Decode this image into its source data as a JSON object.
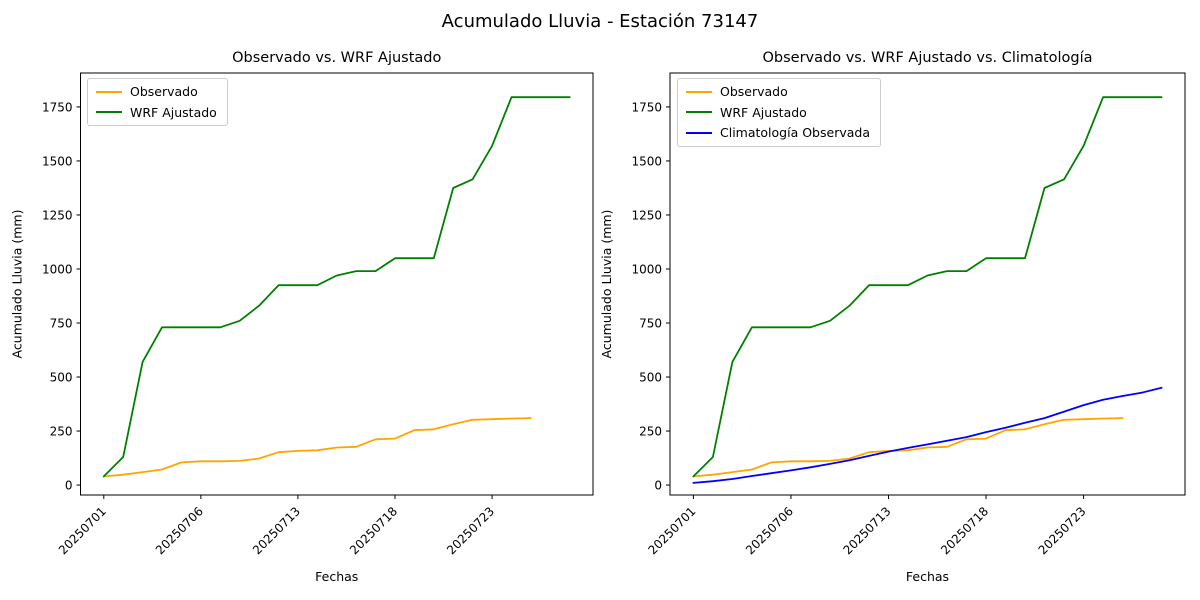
{
  "figure": {
    "title": "Acumulado Lluvia - Estación 73147",
    "background_color": "#ffffff",
    "text_color": "#000000"
  },
  "chart_data": [
    {
      "type": "line",
      "title": "Observado vs. WRF Ajustado",
      "xlabel": "Fechas",
      "ylabel": "Acumulado Lluvia (mm)",
      "x": [
        0,
        1,
        2,
        3,
        4,
        5,
        6,
        7,
        8,
        9,
        10,
        11,
        12,
        13,
        14,
        15,
        16,
        17,
        18,
        19,
        20,
        21,
        22,
        23,
        24
      ],
      "x_tick_positions": [
        0,
        5,
        10,
        15,
        20
      ],
      "x_tick_labels": [
        "20250701",
        "20250706",
        "20250713",
        "20250718",
        "20250723"
      ],
      "x_tick_rotation": 45,
      "yticks": [
        0,
        250,
        500,
        750,
        1000,
        1250,
        1500,
        1750
      ],
      "xlim": [
        -1.2,
        25.2
      ],
      "ylim": [
        -46,
        1907
      ],
      "grid": false,
      "legend_position": "upper left",
      "series": [
        {
          "name": "Observado",
          "color": "#FFA500",
          "values": [
            40,
            48,
            60,
            72,
            105,
            110,
            110,
            112,
            123,
            152,
            158,
            161,
            174,
            177,
            212,
            215,
            254,
            258,
            281,
            302,
            305,
            308,
            310,
            null,
            null
          ]
        },
        {
          "name": "WRF Ajustado",
          "color": "#008000",
          "values": [
            40,
            130,
            570,
            730,
            730,
            730,
            730,
            760,
            830,
            925,
            925,
            925,
            970,
            990,
            990,
            1050,
            1050,
            1050,
            1375,
            1415,
            1570,
            1795,
            1795,
            1795,
            1795
          ]
        }
      ]
    },
    {
      "type": "line",
      "title": "Observado vs. WRF Ajustado vs. Climatología",
      "xlabel": "Fechas",
      "ylabel": "Acumulado Lluvia (mm)",
      "x": [
        0,
        1,
        2,
        3,
        4,
        5,
        6,
        7,
        8,
        9,
        10,
        11,
        12,
        13,
        14,
        15,
        16,
        17,
        18,
        19,
        20,
        21,
        22,
        23,
        24
      ],
      "x_tick_positions": [
        0,
        5,
        10,
        15,
        20
      ],
      "x_tick_labels": [
        "20250701",
        "20250706",
        "20250713",
        "20250718",
        "20250723"
      ],
      "x_tick_rotation": 45,
      "yticks": [
        0,
        250,
        500,
        750,
        1000,
        1250,
        1500,
        1750
      ],
      "xlim": [
        -1.2,
        25.2
      ],
      "ylim": [
        -46,
        1907
      ],
      "grid": false,
      "legend_position": "upper left",
      "series": [
        {
          "name": "Observado",
          "color": "#FFA500",
          "values": [
            40,
            48,
            60,
            72,
            105,
            110,
            110,
            112,
            123,
            152,
            158,
            161,
            174,
            177,
            212,
            215,
            254,
            258,
            281,
            302,
            305,
            308,
            310,
            null,
            null
          ]
        },
        {
          "name": "WRF Ajustado",
          "color": "#008000",
          "values": [
            40,
            130,
            570,
            730,
            730,
            730,
            730,
            760,
            830,
            925,
            925,
            925,
            970,
            990,
            990,
            1050,
            1050,
            1050,
            1375,
            1415,
            1570,
            1795,
            1795,
            1795,
            1795
          ]
        },
        {
          "name": "Climatología Observada",
          "color": "#0000FF",
          "values": [
            10,
            18,
            28,
            42,
            55,
            68,
            82,
            98,
            115,
            135,
            155,
            172,
            188,
            205,
            222,
            245,
            265,
            288,
            310,
            340,
            370,
            395,
            412,
            428,
            450
          ]
        }
      ]
    }
  ]
}
